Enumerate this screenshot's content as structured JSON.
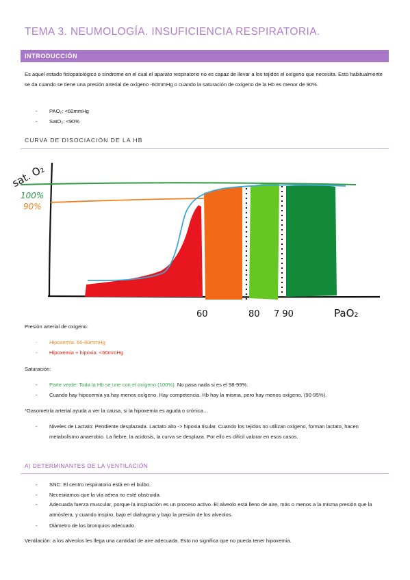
{
  "title": "TEMA 3. NEUMOLOGÍA. INSUFICIENCIA RESPIRATORIA.",
  "intro": {
    "heading": "INTRODUCCIÓN",
    "paragraph": "Es aquel estado fisiopatológico o síndrome en el cual el aparato respiratorio no es capaz de llevar a los tejidos el oxígeno que necesita. Esto habitualmente se da cuando se tiene una presión arterial de oxígeno -60mmHg o cuando la saturación de oxígeno de la Hb es menor de 90%.",
    "bullets": [
      "PAO₂: <60mmHg",
      "SatO₂: <90%"
    ]
  },
  "curve": {
    "heading": "CURVA DE DISOCIACIÓN DE LA HB",
    "handwriting": {
      "y_label": "sat. O₂",
      "mark_100": "100%",
      "mark_90": "90%",
      "x_ticks": [
        "60",
        "80",
        "7 90"
      ],
      "x_label": "PaO₂"
    },
    "colors": {
      "red": "#e8161f",
      "orange": "#f26a18",
      "lightgreen": "#66c722",
      "darkgreen": "#128a3a",
      "blue": "#3fa7d6",
      "green_line": "#2f9a47",
      "orange_line": "#f08020"
    }
  },
  "pao2": {
    "label": "Presión arterial de oxígeno:",
    "items": [
      {
        "text": "Hipoxemia: 60-80mmHg",
        "color": "orange"
      },
      {
        "text": "Hipoxemia + hipoxia: <60mmHg",
        "color": "red"
      }
    ]
  },
  "saturacion": {
    "label": "Saturación:",
    "item1_green": "Parte verde: Toda la Hb se une con el oxígeno (100%).",
    "item1_rest": " No pasa nada si es el 98-99%.",
    "item2": "Cuando hay hipoxemia ya hay menos oxígeno. Hay competencia. Hb hay la misma, pero hay menos oxígeno. (90-95%)."
  },
  "gasometria": {
    "note": "*Gasometría arterial ayuda a ver la causa, si la hipoxemia es aguda o crónica…",
    "item": "Niveles de Lactato: Pendiente desplazada. Lactato alto -> hipoxia tisular. Cuando los tejidos no utilizan oxígeno, forman lactato, hacen metabolismo anaerobio. La fiebre, la acidosis, la curva se desplaza. Por ello es difícil valorar en esos casos."
  },
  "ventilacion": {
    "heading": "A) DETERMINANTES DE LA VENTILACIÓN",
    "items": [
      "SNC: El centro respiratorio está en el bulbo.",
      "Necesitamos que la vía aérea no esté obstruida.",
      "Adecuada fuerza muscular, porque la inspiración es un proceso activo. El alveolo está lleno de aire, más o menos a la misma presión que la atmósfera, y cuando inspiro, bajo el diafragma y bajo la presión de los alveolos.",
      "Diámetro de los bronquios adecuado."
    ],
    "footer": "Ventilación: a los alveolos les llega una cantidad de aire adecuada. Esto no significa que no pueda tener hipoxemia."
  }
}
